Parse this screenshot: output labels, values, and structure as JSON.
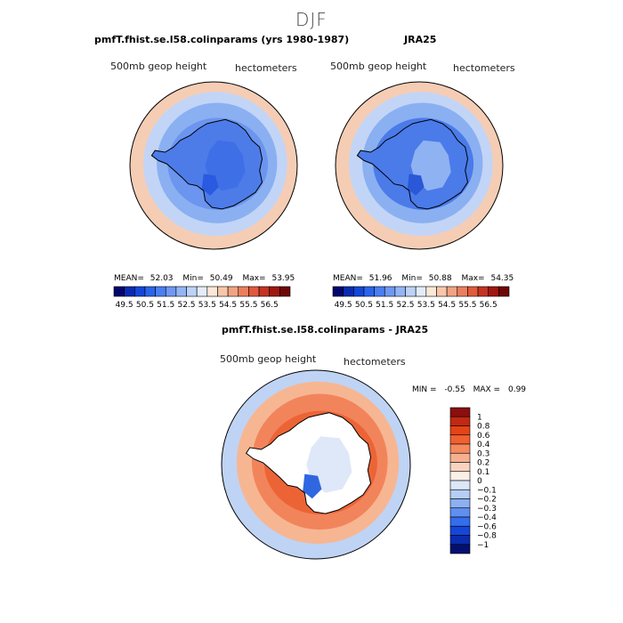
{
  "figure": {
    "title": "DJF"
  },
  "chart_data": [
    {
      "type": "heatmap",
      "projection": "south-polar-stereographic",
      "title": "pmfT.fhist.se.l58.colinparams (yrs 1980-1987)",
      "left_label": "500mb geop height",
      "right_label": "hectometers",
      "stats": {
        "mean_label": "MEAN=",
        "mean": "52.03",
        "min_label": "Min=",
        "min": "50.49",
        "max_label": "Max=",
        "max": "53.95"
      },
      "colorbar": {
        "orientation": "horizontal",
        "levels": [
          "49.5",
          "50.5",
          "51.5",
          "52.5",
          "53.5",
          "54.5",
          "55.5",
          "56.5"
        ],
        "colors": [
          "#04066f",
          "#0a2bb0",
          "#1446d8",
          "#2a64ec",
          "#4b7ef2",
          "#6e98f2",
          "#93b4f5",
          "#bcd2f6",
          "#e3ecf8",
          "#fbe8d8",
          "#f7c7a8",
          "#f1a382",
          "#eb7f5d",
          "#e05a3c",
          "#c53322",
          "#a01812",
          "#6e0808"
        ]
      },
      "field": {
        "outer_ring": "#f5cdb5",
        "mid_ring": "#c2d5f6",
        "inner_ring": "#8ab0f2",
        "interior": "#6b95ef",
        "continent": "#4d7ce9",
        "plateau": "#3f6fe6",
        "ice_shelf": "#2a5ae0"
      }
    },
    {
      "type": "heatmap",
      "projection": "south-polar-stereographic",
      "title": "JRA25",
      "left_label": "500mb geop height",
      "right_label": "hectometers",
      "stats": {
        "mean_label": "MEAN=",
        "mean": "51.96",
        "min_label": "Min=",
        "min": "50.88",
        "max_label": "Max=",
        "max": "54.35"
      },
      "colorbar": {
        "orientation": "horizontal",
        "levels": [
          "49.5",
          "50.5",
          "51.5",
          "52.5",
          "53.5",
          "54.5",
          "55.5",
          "56.5"
        ],
        "colors": [
          "#04066f",
          "#0a2bb0",
          "#1446d8",
          "#2a64ec",
          "#4b7ef2",
          "#6e98f2",
          "#93b4f5",
          "#bcd2f6",
          "#e3ecf8",
          "#fbe8d8",
          "#f7c7a8",
          "#f1a382",
          "#eb7f5d",
          "#e05a3c",
          "#c53322",
          "#a01812",
          "#6e0808"
        ]
      },
      "field": {
        "outer_ring": "#f5cdb5",
        "mid_ring": "#c2d5f6",
        "inner_ring": "#8ab0f2",
        "interior": "#4a7be9",
        "continent": "#4a7be9",
        "plateau": "#8fb2f2",
        "ice_shelf": "#2a58d8"
      }
    },
    {
      "type": "heatmap",
      "projection": "south-polar-stereographic",
      "title": "pmfT.fhist.se.l58.colinparams - JRA25",
      "left_label": "500mb geop height",
      "right_label": "hectometers",
      "stats": {
        "min_label": "MIN =",
        "min": "-0.55",
        "max_label": "MAX =",
        "max": "0.99"
      },
      "colorbar": {
        "orientation": "vertical",
        "levels": [
          "1",
          "0.8",
          "0.6",
          "0.4",
          "0.3",
          "0.2",
          "0.1",
          "0",
          "-0.1",
          "-0.2",
          "-0.3",
          "-0.4",
          "-0.6",
          "-0.8",
          "-1"
        ],
        "colors": [
          "#8a0f0f",
          "#c22812",
          "#e44416",
          "#f06030",
          "#f48a5e",
          "#f7b08f",
          "#fad3c0",
          "#fbf0e8",
          "#dce8f8",
          "#b6cdf5",
          "#8cb0f2",
          "#5f8ff0",
          "#346ded",
          "#1447d8",
          "#0a2cb0",
          "#04106f"
        ]
      },
      "field": {
        "outer_ring": "#bfd3f4",
        "mid_ring": "#f7b692",
        "inner_ring": "#f2845c",
        "interior": "#ec6436",
        "continent": "#ffffff",
        "plateau": "#dfe8f8",
        "ice_shelf": "#2f67e0"
      }
    }
  ]
}
